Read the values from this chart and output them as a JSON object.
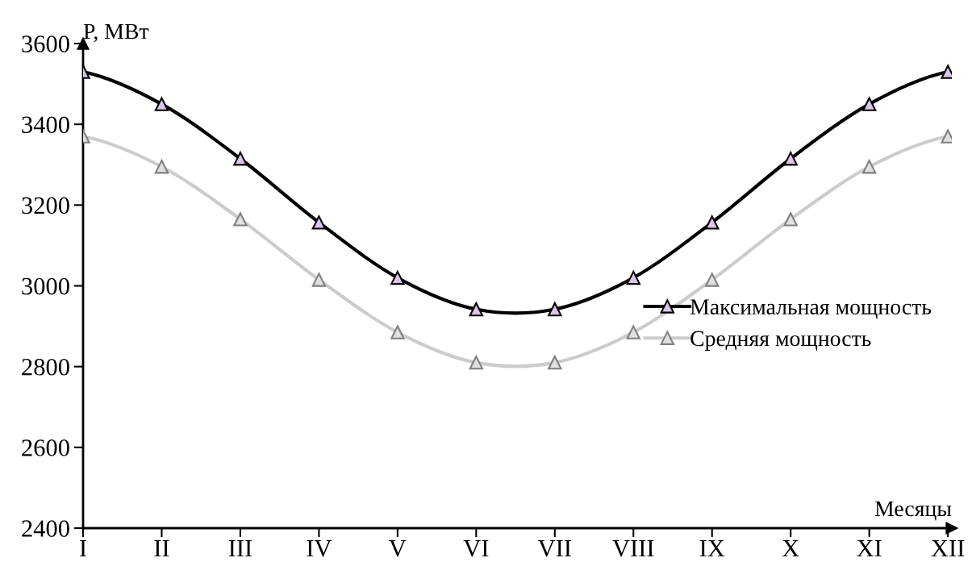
{
  "chart_data": {
    "type": "line",
    "xlabel": "Месяцы",
    "ylabel": "P, МВт",
    "categories": [
      "I",
      "II",
      "III",
      "IV",
      "V",
      "VI",
      "VII",
      "VIII",
      "IX",
      "X",
      "XI",
      "XII"
    ],
    "series": [
      {
        "name": "Максимальная мощность",
        "color": "#000000",
        "values": [
          3530,
          3450,
          3315,
          3157,
          3020,
          2942,
          2942,
          3020,
          3157,
          3315,
          3450,
          3530
        ]
      },
      {
        "name": "Средняя мощность",
        "color": "#cccccc",
        "values": [
          3370,
          3295,
          3165,
          3015,
          2885,
          2810,
          2810,
          2885,
          3015,
          3165,
          3295,
          3370
        ]
      }
    ],
    "ylim": [
      2400,
      3600
    ],
    "yticks": [
      2400,
      2600,
      2800,
      3000,
      3200,
      3400,
      3600
    ],
    "grid": false,
    "legend": "right",
    "marker": "triangle",
    "line_style": "solid"
  }
}
